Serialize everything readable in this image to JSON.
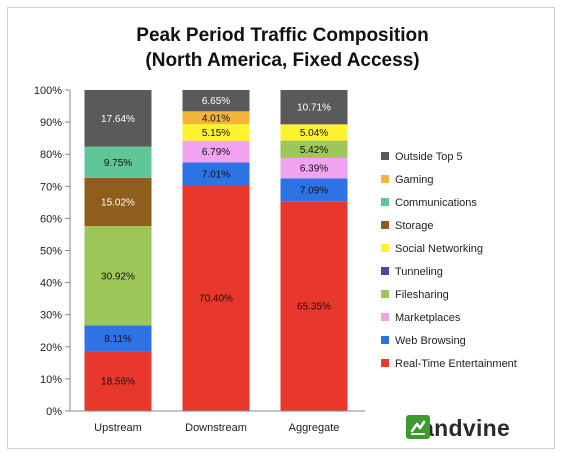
{
  "chart_data": {
    "type": "bar",
    "stacked": true,
    "title": "Peak Period Traffic Composition",
    "subtitle": "(North America, Fixed Access)",
    "categories": [
      "Upstream",
      "Downstream",
      "Aggregate"
    ],
    "ylim": [
      0,
      100
    ],
    "yticks": [
      "0%",
      "10%",
      "20%",
      "30%",
      "40%",
      "50%",
      "60%",
      "70%",
      "80%",
      "90%",
      "100%"
    ],
    "grid": false,
    "legend_position": "right",
    "series": [
      {
        "name": "Real-Time Entertainment",
        "color": "#e8372c",
        "values": [
          18.56,
          70.4,
          65.35
        ],
        "labels": [
          "18.56%",
          "70.40%",
          "65.35%"
        ]
      },
      {
        "name": "Web Browsing",
        "color": "#2e73e6",
        "values": [
          8.11,
          7.01,
          7.09
        ],
        "labels": [
          "8.11%",
          "7.01%",
          "7.09%"
        ]
      },
      {
        "name": "Marketplaces",
        "color": "#f2a3f0",
        "values": [
          0,
          6.79,
          6.39
        ],
        "labels": [
          "",
          "6.79%",
          "6.39%"
        ]
      },
      {
        "name": "Filesharing",
        "color": "#9ec75a",
        "values": [
          30.92,
          0,
          5.42
        ],
        "labels": [
          "30.92%",
          "",
          "5.42%"
        ]
      },
      {
        "name": "Tunneling",
        "color": "#5b3f9e",
        "values": [
          0,
          0,
          0
        ],
        "labels": [
          "",
          "",
          ""
        ]
      },
      {
        "name": "Social Networking",
        "color": "#fff22e",
        "values": [
          0,
          5.15,
          5.04
        ],
        "labels": [
          "",
          "5.15%",
          "5.04%"
        ]
      },
      {
        "name": "Storage",
        "color": "#8f5e1c",
        "values": [
          15.02,
          0,
          0
        ],
        "labels": [
          "15.02%",
          "",
          ""
        ]
      },
      {
        "name": "Communications",
        "color": "#5fc69a",
        "values": [
          9.75,
          0,
          0
        ],
        "labels": [
          "9.75%",
          "",
          ""
        ]
      },
      {
        "name": "Gaming",
        "color": "#f4b63a",
        "values": [
          0,
          4.01,
          0
        ],
        "labels": [
          "",
          "4.01%",
          ""
        ]
      },
      {
        "name": "Outside Top 5",
        "color": "#5a5a5a",
        "values": [
          17.64,
          6.65,
          10.71
        ],
        "labels": [
          "17.64%",
          "6.65%",
          "10.71%"
        ]
      }
    ]
  },
  "brand": {
    "name": "sandvine",
    "icon": "sandvine-logo-icon",
    "color": "#3f9a2e"
  }
}
